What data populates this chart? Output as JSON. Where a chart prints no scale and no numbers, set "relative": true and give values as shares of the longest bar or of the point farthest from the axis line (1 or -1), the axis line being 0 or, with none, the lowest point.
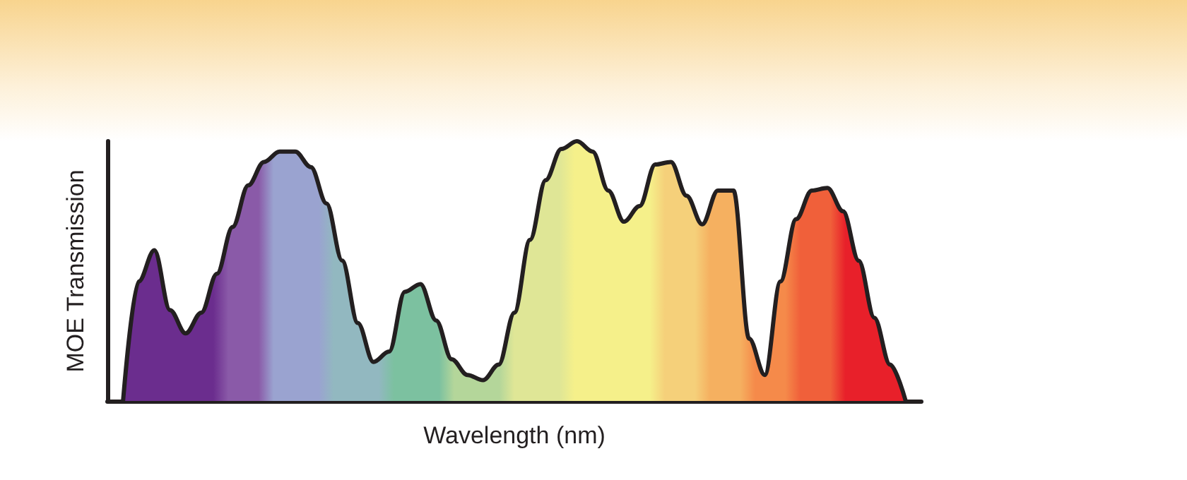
{
  "chart_data": {
    "type": "area",
    "xlabel": "Wavelength (nm)",
    "ylabel": "MOE Transmission",
    "relative": true,
    "categories": [
      null,
      null,
      null,
      null,
      null,
      null,
      null,
      null,
      null,
      null,
      null,
      null,
      null,
      null,
      null,
      null,
      null,
      null,
      null,
      null,
      null,
      null,
      null,
      null,
      null,
      null,
      null,
      null,
      null,
      null,
      null,
      null,
      null,
      null,
      null,
      null,
      null,
      null,
      null,
      null,
      null,
      null,
      null,
      null,
      null,
      null,
      null,
      null,
      null,
      null,
      null,
      null,
      null
    ],
    "series": [
      {
        "color": "#231f20",
        "values": [
          null,
          0,
          0.46,
          0.58,
          0.35,
          0.26,
          0.34,
          0.49,
          0.67,
          0.83,
          0.92,
          0.96,
          0.96,
          0.9,
          0.76,
          0.54,
          0.3,
          0.15,
          0.19,
          0.42,
          0.45,
          0.31,
          0.16,
          0.1,
          0.08,
          0.14,
          0.34,
          0.62,
          0.85,
          0.97,
          1,
          0.96,
          0.81,
          0.69,
          0.75,
          0.91,
          0.92,
          0.79,
          0.68,
          0.81,
          0.81,
          0.24,
          0.1,
          0.46,
          0.7,
          0.81,
          0.82,
          0.73,
          0.54,
          0.32,
          0.14,
          0,
          null
        ],
        "colors": [
          null,
          "#6b2d8e",
          "#6b2d8e",
          "#6b2d8e",
          "#6b2d8e",
          "#6b2d8e",
          "#6b2d8e",
          "#8a5aa8",
          "#8a5aa8",
          "#8a5aa8",
          "#9aa3d0",
          "#9aa3d0",
          "#9aa3d0",
          "#9aa3d0",
          "#92b8c0",
          "#92b8c0",
          "#92b8c0",
          "#92b8c0",
          "#7cc1a0",
          "#7cc1a0",
          "#7cc1a0",
          "#7cc1a0",
          "#b4d69a",
          "#b4d69a",
          "#b4d69a",
          "#b4d69a",
          "#dfe696",
          "#dfe696",
          "#dfe696",
          "#dfe696",
          "#f5f08a",
          "#f5f08a",
          "#f5f08a",
          "#f5f08a",
          "#f5f08a",
          "#f5f08a",
          "#f5d07a",
          "#f5d07a",
          "#f5d07a",
          "#f5b060",
          "#f5b060",
          "#f5b060",
          "#f58a4a",
          "#f58a4a",
          "#f58a4a",
          "#f0603a",
          "#f0603a",
          "#f0603a",
          "#e8202a",
          "#e8202a",
          "#e8202a",
          "#e8202a",
          null
        ]
      }
    ]
  }
}
